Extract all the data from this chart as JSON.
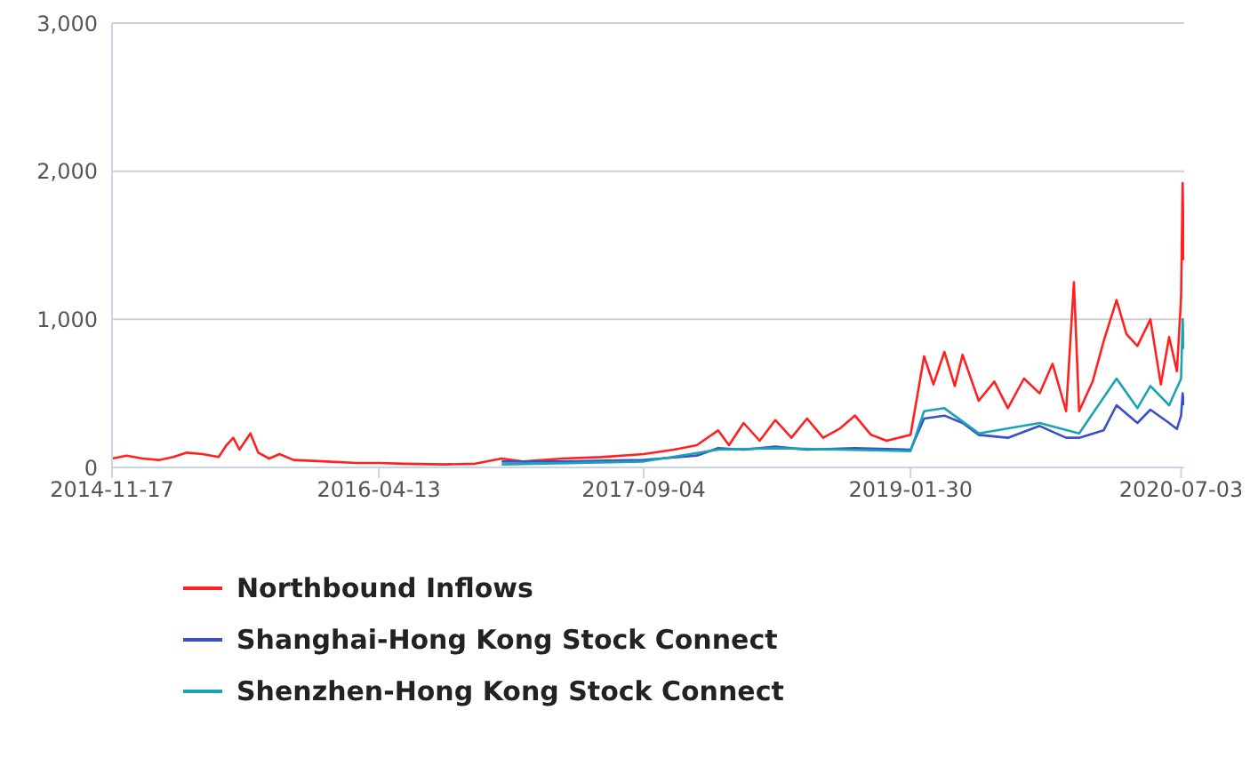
{
  "chart_data": {
    "type": "line",
    "xlim": [
      "2014-11-17",
      "2020-07-09"
    ],
    "xticks": [
      "2014-11-17",
      "2016-04-13",
      "2017-09-04",
      "2019-01-30",
      "2020-07-03"
    ],
    "ylim": [
      0,
      3000
    ],
    "yticks": [
      0,
      {
        "value": 1000,
        "label": "1,000"
      },
      {
        "value": 2000,
        "label": "2,000"
      },
      {
        "value": 3000,
        "label": "3,000"
      }
    ],
    "grid": "y",
    "legend": "bottom",
    "marker": "none",
    "line_style": "solid",
    "series": [
      {
        "name": "Northbound Inflows",
        "color": "#ff2020",
        "x": [
          "2014-11-17",
          "2014-12-15",
          "2015-01-15",
          "2015-02-15",
          "2015-03-15",
          "2015-04-10",
          "2015-05-10",
          "2015-06-10",
          "2015-06-25",
          "2015-07-08",
          "2015-07-20",
          "2015-08-10",
          "2015-08-25",
          "2015-09-15",
          "2015-10-05",
          "2015-11-01",
          "2016-01-05",
          "2016-03-01",
          "2016-04-13",
          "2016-06-01",
          "2016-08-15",
          "2016-10-15",
          "2016-12-05",
          "2017-01-15",
          "2017-04-01",
          "2017-06-15",
          "2017-09-04",
          "2017-11-01",
          "2017-12-15",
          "2018-01-25",
          "2018-02-15",
          "2018-03-15",
          "2018-04-15",
          "2018-05-15",
          "2018-06-15",
          "2018-07-15",
          "2018-08-15",
          "2018-09-15",
          "2018-10-15",
          "2018-11-15",
          "2018-12-15",
          "2019-01-30",
          "2019-02-25",
          "2019-03-15",
          "2019-04-05",
          "2019-04-25",
          "2019-05-10",
          "2019-06-10",
          "2019-07-10",
          "2019-08-05",
          "2019-09-05",
          "2019-10-05",
          "2019-10-30",
          "2019-11-25",
          "2019-12-10",
          "2019-12-20",
          "2020-01-15",
          "2020-02-05",
          "2020-03-01",
          "2020-03-20",
          "2020-04-10",
          "2020-05-05",
          "2020-05-25",
          "2020-06-10",
          "2020-06-25",
          "2020-07-03",
          "2020-07-06",
          "2020-07-08"
        ],
        "values": [
          60,
          80,
          60,
          50,
          70,
          100,
          90,
          70,
          150,
          200,
          120,
          230,
          100,
          60,
          90,
          50,
          40,
          30,
          30,
          25,
          20,
          25,
          60,
          40,
          60,
          70,
          90,
          120,
          150,
          250,
          150,
          300,
          180,
          320,
          200,
          330,
          200,
          260,
          350,
          220,
          180,
          220,
          750,
          560,
          780,
          550,
          760,
          450,
          580,
          400,
          600,
          500,
          700,
          380,
          1250,
          380,
          580,
          850,
          1130,
          900,
          820,
          1000,
          560,
          880,
          650,
          1150,
          1920,
          1400
        ]
      },
      {
        "name": "Shanghai-Hong Kong Stock Connect",
        "color": "#3a4fc8",
        "x": [
          "2016-12-05",
          "2017-04-01",
          "2017-09-04",
          "2017-12-15",
          "2018-01-25",
          "2018-03-15",
          "2018-05-15",
          "2018-07-15",
          "2018-10-15",
          "2019-01-30",
          "2019-02-25",
          "2019-04-05",
          "2019-05-10",
          "2019-06-10",
          "2019-08-05",
          "2019-10-05",
          "2019-11-25",
          "2019-12-20",
          "2020-02-05",
          "2020-03-01",
          "2020-04-10",
          "2020-05-05",
          "2020-06-10",
          "2020-06-25",
          "2020-07-03",
          "2020-07-06",
          "2020-07-08"
        ],
        "values": [
          40,
          40,
          50,
          80,
          130,
          120,
          140,
          120,
          130,
          120,
          330,
          350,
          300,
          220,
          200,
          280,
          200,
          200,
          250,
          420,
          300,
          390,
          300,
          260,
          350,
          500,
          420
        ]
      },
      {
        "name": "Shenzhen-Hong Kong Stock Connect",
        "color": "#1aa3b5",
        "x": [
          "2016-12-05",
          "2017-09-04",
          "2018-01-25",
          "2018-05-15",
          "2019-01-30",
          "2019-02-25",
          "2019-04-05",
          "2019-06-10",
          "2019-10-05",
          "2019-12-20",
          "2020-03-01",
          "2020-04-10",
          "2020-05-05",
          "2020-06-10",
          "2020-07-03",
          "2020-07-06",
          "2020-07-08"
        ],
        "values": [
          20,
          40,
          120,
          130,
          110,
          380,
          400,
          230,
          300,
          230,
          600,
          400,
          550,
          420,
          600,
          1000,
          800
        ]
      }
    ]
  }
}
